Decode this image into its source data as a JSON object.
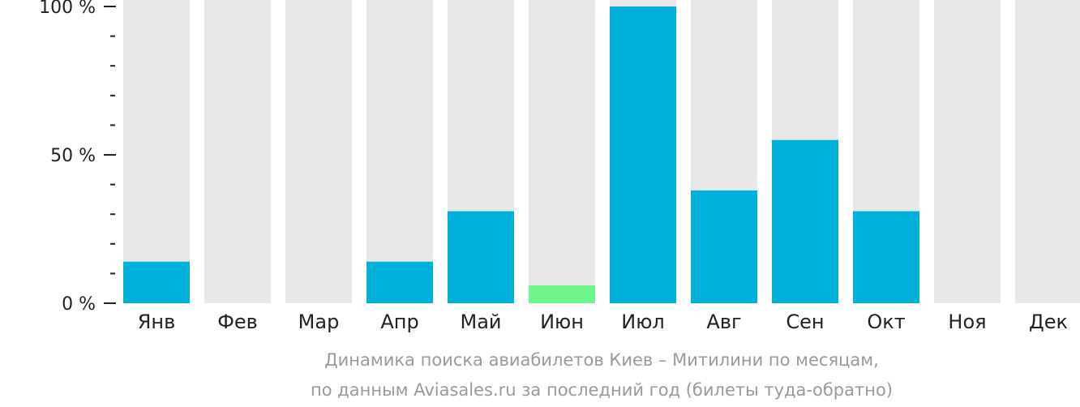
{
  "chart_data": {
    "type": "bar",
    "categories": [
      "Янв",
      "Фев",
      "Мар",
      "Апр",
      "Май",
      "Июн",
      "Июл",
      "Авг",
      "Сен",
      "Окт",
      "Ноя",
      "Дек"
    ],
    "values": [
      14,
      0,
      0,
      14,
      31,
      6,
      100,
      38,
      55,
      31,
      0,
      0
    ],
    "highlight_index": 5,
    "ylim": [
      0,
      100
    ],
    "y_ticks": [
      {
        "value": 100,
        "label": "100 %"
      },
      {
        "value": 50,
        "label": "50 %"
      },
      {
        "value": 0,
        "label": "0 %"
      }
    ],
    "minor_tick_step": 10,
    "caption_line1": "Динамика поиска авиабилетов Киев – Митилини по месяцам,",
    "caption_line2": "по данным Aviasales.ru за последний год (билеты туда-обратно)"
  },
  "colors": {
    "bar": "#00b1dc",
    "highlight": "#6cf58a",
    "track": "#e8e8e8",
    "axis": "#222222"
  }
}
